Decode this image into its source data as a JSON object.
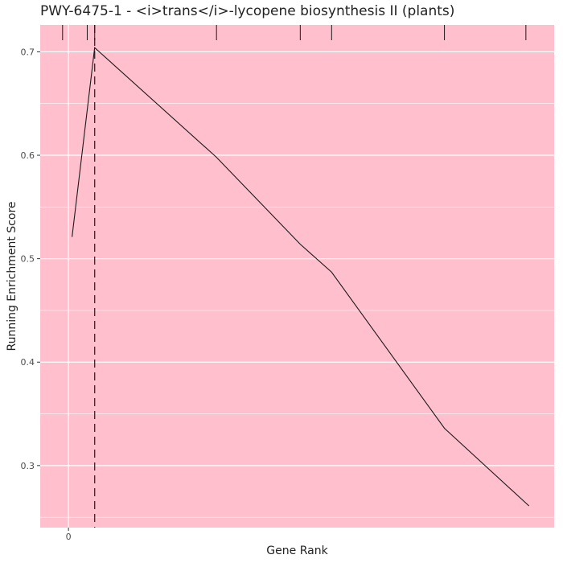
{
  "chart_data": {
    "type": "line",
    "title": "PWY-6475-1 - <i>trans</i>-lycopene biosynthesis II (plants)",
    "xlabel": "Gene Rank",
    "ylabel": "Running Enrichment Score",
    "x_ticks": [
      0
    ],
    "y_ticks": [
      0.3,
      0.4,
      0.5,
      0.6,
      0.7
    ],
    "y_tick_labels": [
      "0.3",
      "0.4",
      "0.5",
      "0.6",
      "0.7"
    ],
    "xlim": [
      -110,
      1890
    ],
    "ylim": [
      0.24,
      0.726
    ],
    "x_tick_labels": [
      "0"
    ],
    "series": [
      {
        "x": [
          14,
          102,
          576,
          902,
          1024,
          1463,
          1792
        ],
        "y": [
          0.521,
          0.704,
          0.598,
          0.514,
          0.487,
          0.336,
          0.261
        ]
      }
    ],
    "gene_hits": [
      -23,
      73,
      102,
      576,
      902,
      1024,
      1463,
      1780
    ],
    "peak_x": 102,
    "grid": true,
    "background_color": "#FFBFCC",
    "grid_color": "#ffffff",
    "line_color": "#1a1a1a"
  }
}
